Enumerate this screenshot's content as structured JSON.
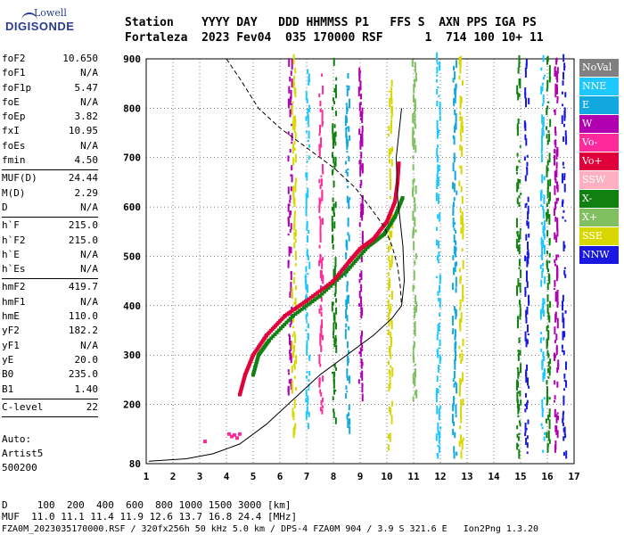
{
  "logo": {
    "line1": "Lowell",
    "line2": "DIGISONDE"
  },
  "header": {
    "line1": "Station    YYYY DAY   DDD HHMMSS P1   FFS S  AXN PPS IGA PS",
    "line2": "Fortaleza  2023 Fev04  035 170000 RSF      1  714 100 10+ 11"
  },
  "params": [
    {
      "name": "foF2",
      "value": "10.650"
    },
    {
      "name": "foF1",
      "value": "N/A"
    },
    {
      "name": "foF1p",
      "value": "5.47"
    },
    {
      "name": "foE",
      "value": "N/A"
    },
    {
      "name": "foEp",
      "value": "3.82"
    },
    {
      "name": "fxI",
      "value": "10.95"
    },
    {
      "name": "foEs",
      "value": "N/A"
    },
    {
      "name": "fmin",
      "value": "4.50"
    },
    {
      "sep": true
    },
    {
      "name": "MUF(D)",
      "value": "24.44"
    },
    {
      "name": "M(D)",
      "value": "2.29"
    },
    {
      "name": "D",
      "value": "N/A"
    },
    {
      "sep": true
    },
    {
      "name": "h`F",
      "value": "215.0"
    },
    {
      "name": "h`F2",
      "value": "215.0"
    },
    {
      "name": "h`E",
      "value": "N/A"
    },
    {
      "name": "h`Es",
      "value": "N/A"
    },
    {
      "sep": true
    },
    {
      "name": "hmF2",
      "value": "419.7"
    },
    {
      "name": "hmF1",
      "value": "N/A"
    },
    {
      "name": "hmE",
      "value": "110.0"
    },
    {
      "name": "yF2",
      "value": "182.2"
    },
    {
      "name": "yF1",
      "value": "N/A"
    },
    {
      "name": "yE",
      "value": "20.0"
    },
    {
      "name": "B0",
      "value": "235.0"
    },
    {
      "name": "B1",
      "value": "1.40"
    },
    {
      "sep": true
    },
    {
      "name": "C-level",
      "value": "22"
    },
    {
      "sep": true
    }
  ],
  "auto": {
    "line1": "Auto:",
    "line2": "Artist5",
    "line3": "500200"
  },
  "legend": [
    {
      "label": "NoVal",
      "color": "#808080"
    },
    {
      "label": "NNE",
      "color": "#1ec8ff"
    },
    {
      "label": "E",
      "color": "#12a8e0"
    },
    {
      "label": "W",
      "color": "#b000b0"
    },
    {
      "label": "Vo-",
      "color": "#ff2a9c"
    },
    {
      "label": "Vo+",
      "color": "#e0003a"
    },
    {
      "label": "SSW",
      "color": "#ffb0c0"
    },
    {
      "label": "X-",
      "color": "#108010"
    },
    {
      "label": "X+",
      "color": "#80c060"
    },
    {
      "label": "SSE",
      "color": "#d8d800"
    },
    {
      "label": "NNW",
      "color": "#1818e0"
    }
  ],
  "bottom": {
    "line1": "D     100  200  400  600  800 1000 1500 3000 [km]",
    "line2": "MUF  11.0 11.1 11.4 11.9 12.6 13.7 16.8 24.4 [MHz]",
    "line3": "FZA0M_2023035170000.RSF / 320fx256h 50 kHz 5.0 km / DPS-4 FZA0M 904 / 3.9 S 321.6 E   Ion2Png 1.3.20"
  },
  "chart_data": {
    "type": "scatter",
    "xlim": [
      1,
      17
    ],
    "ylim": [
      80,
      900
    ],
    "x_ticks": [
      1,
      2,
      3,
      4,
      5,
      6,
      7,
      8,
      9,
      10,
      11,
      12,
      13,
      14,
      15,
      16,
      17
    ],
    "y_ticks": [
      80,
      200,
      300,
      400,
      500,
      600,
      700,
      800,
      900
    ],
    "grid": true,
    "o_trace": {
      "color": "#e0003a",
      "points": [
        [
          4.5,
          220
        ],
        [
          4.7,
          260
        ],
        [
          5.0,
          300
        ],
        [
          5.5,
          340
        ],
        [
          6.2,
          380
        ],
        [
          7.0,
          410
        ],
        [
          8.0,
          450
        ],
        [
          8.6,
          490
        ],
        [
          9.0,
          515
        ],
        [
          9.5,
          535
        ],
        [
          10.0,
          570
        ],
        [
          10.3,
          610
        ],
        [
          10.4,
          650
        ],
        [
          10.45,
          690
        ]
      ]
    },
    "x_trace": {
      "color": "#108010",
      "points": [
        [
          5.0,
          260
        ],
        [
          5.2,
          300
        ],
        [
          5.6,
          330
        ],
        [
          6.5,
          380
        ],
        [
          7.5,
          420
        ],
        [
          8.5,
          470
        ],
        [
          9.3,
          520
        ],
        [
          9.9,
          545
        ],
        [
          10.3,
          580
        ],
        [
          10.6,
          620
        ]
      ]
    },
    "profile_curve": {
      "points": [
        [
          1.1,
          85
        ],
        [
          2.5,
          90
        ],
        [
          3.5,
          100
        ],
        [
          4.5,
          120
        ],
        [
          5.5,
          160
        ],
        [
          6.5,
          210
        ],
        [
          7.5,
          260
        ],
        [
          8.5,
          300
        ],
        [
          9.5,
          340
        ],
        [
          10.2,
          375
        ],
        [
          10.55,
          400
        ],
        [
          10.65,
          450
        ],
        [
          10.6,
          520
        ],
        [
          10.4,
          620
        ],
        [
          10.35,
          700
        ],
        [
          10.55,
          800
        ]
      ]
    },
    "dashed_curve": {
      "points": [
        [
          4.0,
          900
        ],
        [
          4.5,
          860
        ],
        [
          5.2,
          800
        ],
        [
          6.0,
          760
        ],
        [
          7.0,
          720
        ],
        [
          8.0,
          680
        ],
        [
          8.8,
          640
        ],
        [
          9.5,
          590
        ],
        [
          9.9,
          560
        ],
        [
          10.2,
          520
        ],
        [
          10.4,
          480
        ],
        [
          10.5,
          440
        ],
        [
          10.55,
          400
        ]
      ]
    },
    "low_cluster": {
      "points": [
        [
          3.2,
          125
        ],
        [
          4.1,
          140
        ],
        [
          4.2,
          135
        ],
        [
          4.3,
          138
        ],
        [
          4.4,
          132
        ],
        [
          4.5,
          140
        ]
      ]
    },
    "noise_columns": [
      {
        "x": 6.35,
        "from": 200,
        "to": 890,
        "color": "#b000b0"
      },
      {
        "x": 6.5,
        "from": 120,
        "to": 890,
        "color": "#d8d800"
      },
      {
        "x": 7.0,
        "from": 150,
        "to": 880,
        "color": "#1ec8ff"
      },
      {
        "x": 7.5,
        "from": 180,
        "to": 870,
        "color": "#ff2a9c"
      },
      {
        "x": 8.0,
        "from": 160,
        "to": 890,
        "color": "#108010"
      },
      {
        "x": 8.5,
        "from": 140,
        "to": 880,
        "color": "#12a8e0"
      },
      {
        "x": 9.0,
        "from": 200,
        "to": 880,
        "color": "#b000b0"
      },
      {
        "x": 10.1,
        "from": 100,
        "to": 890,
        "color": "#d8d800"
      },
      {
        "x": 11.0,
        "from": 200,
        "to": 890,
        "color": "#80c060"
      },
      {
        "x": 11.9,
        "from": 90,
        "to": 895,
        "color": "#1ec8ff"
      },
      {
        "x": 12.5,
        "from": 90,
        "to": 895,
        "color": "#12a8e0"
      },
      {
        "x": 12.75,
        "from": 90,
        "to": 895,
        "color": "#d8d800"
      },
      {
        "x": 14.9,
        "from": 90,
        "to": 895,
        "color": "#108010"
      },
      {
        "x": 15.2,
        "from": 100,
        "to": 895,
        "color": "#1818e0"
      },
      {
        "x": 15.8,
        "from": 90,
        "to": 895,
        "color": "#1ec8ff"
      },
      {
        "x": 16.0,
        "from": 90,
        "to": 895,
        "color": "#108010"
      },
      {
        "x": 16.3,
        "from": 90,
        "to": 895,
        "color": "#b000b0"
      },
      {
        "x": 16.6,
        "from": 90,
        "to": 895,
        "color": "#1818e0"
      }
    ]
  }
}
